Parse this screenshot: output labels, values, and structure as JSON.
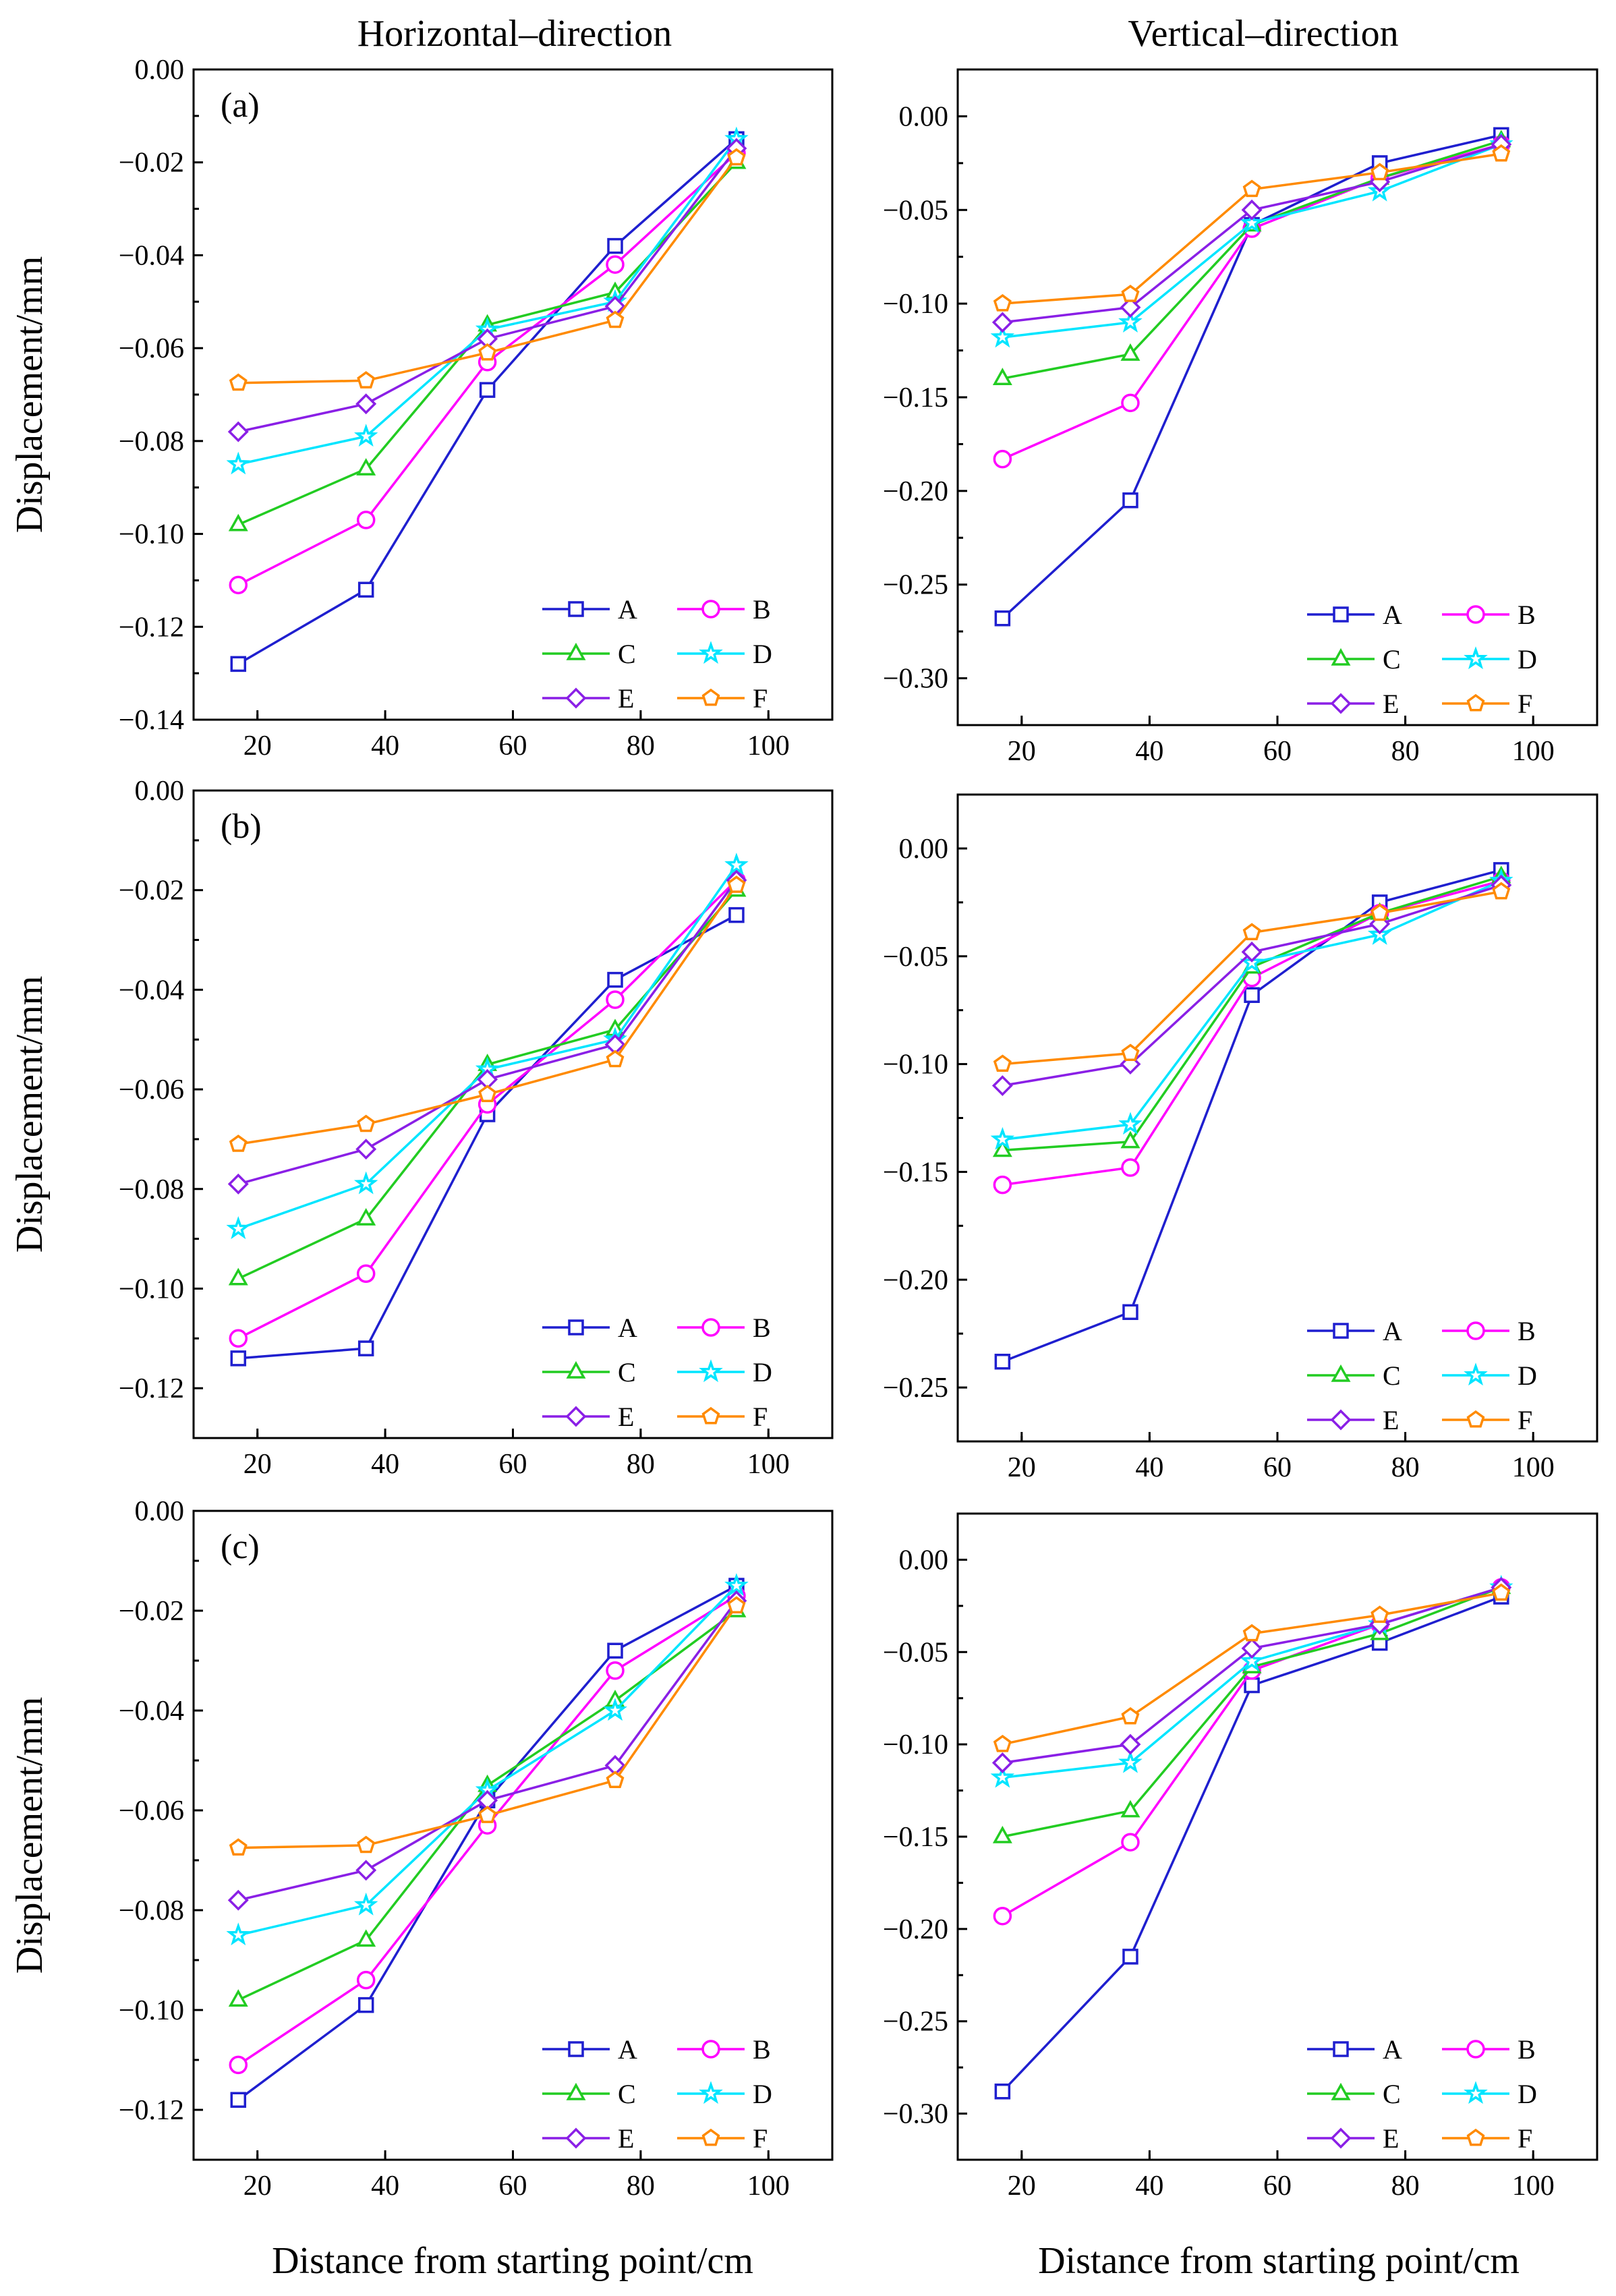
{
  "figure": {
    "col_titles": [
      "Horizontal–direction",
      "Vertical–direction"
    ],
    "xlabel": "Distance from starting point/cm",
    "ylabel": "Displacement/mm"
  },
  "series_style": [
    {
      "name": "A",
      "color": "#1f1fcf",
      "marker": "square"
    },
    {
      "name": "B",
      "color": "#ff00ff",
      "marker": "circle"
    },
    {
      "name": "C",
      "color": "#22cc22",
      "marker": "triangle"
    },
    {
      "name": "D",
      "color": "#00e5ff",
      "marker": "star"
    },
    {
      "name": "E",
      "color": "#8a1fe6",
      "marker": "diamond"
    },
    {
      "name": "F",
      "color": "#ff8a00",
      "marker": "pentagon"
    }
  ],
  "chart_data": [
    {
      "type": "line",
      "panel": "(a)",
      "column": "Horizontal–direction",
      "xlim": [
        10,
        110
      ],
      "xticks": [
        20,
        40,
        60,
        80,
        100
      ],
      "ylim": [
        -0.14,
        0.0
      ],
      "yticks": [
        -0.14,
        -0.12,
        -0.1,
        -0.08,
        -0.06,
        -0.04,
        -0.02,
        0.0
      ],
      "ytick_labels": [
        "−0.14",
        "−0.12",
        "−0.10",
        "−0.08",
        "−0.06",
        "−0.04",
        "−0.02",
        "0.00"
      ],
      "x": [
        17,
        37,
        56,
        76,
        95
      ],
      "legend": "lower-right",
      "series": [
        {
          "name": "A",
          "values": [
            -0.128,
            -0.112,
            -0.069,
            -0.038,
            -0.015
          ]
        },
        {
          "name": "B",
          "values": [
            -0.111,
            -0.097,
            -0.063,
            -0.042,
            -0.018
          ]
        },
        {
          "name": "C",
          "values": [
            -0.098,
            -0.086,
            -0.055,
            -0.048,
            -0.02
          ]
        },
        {
          "name": "D",
          "values": [
            -0.085,
            -0.079,
            -0.056,
            -0.05,
            -0.015
          ]
        },
        {
          "name": "E",
          "values": [
            -0.078,
            -0.072,
            -0.058,
            -0.051,
            -0.017
          ]
        },
        {
          "name": "F",
          "values": [
            -0.0675,
            -0.067,
            -0.061,
            -0.054,
            -0.019
          ]
        }
      ]
    },
    {
      "type": "line",
      "column": "Vertical–direction",
      "xlim": [
        10,
        110
      ],
      "xticks": [
        20,
        40,
        60,
        80,
        100
      ],
      "ylim": [
        -0.325,
        0.025
      ],
      "yticks": [
        -0.3,
        -0.25,
        -0.2,
        -0.15,
        -0.1,
        -0.05,
        0.0
      ],
      "ytick_labels": [
        "−0.30",
        "−0.25",
        "−0.20",
        "−0.15",
        "−0.10",
        "−0.05",
        "0.00"
      ],
      "x": [
        17,
        37,
        56,
        76,
        95
      ],
      "legend": "lower-right",
      "series": [
        {
          "name": "A",
          "values": [
            -0.268,
            -0.205,
            -0.058,
            -0.025,
            -0.01
          ]
        },
        {
          "name": "B",
          "values": [
            -0.183,
            -0.153,
            -0.06,
            -0.033,
            -0.015
          ]
        },
        {
          "name": "C",
          "values": [
            -0.14,
            -0.127,
            -0.058,
            -0.033,
            -0.013
          ]
        },
        {
          "name": "D",
          "values": [
            -0.118,
            -0.11,
            -0.057,
            -0.04,
            -0.015
          ]
        },
        {
          "name": "E",
          "values": [
            -0.11,
            -0.102,
            -0.05,
            -0.035,
            -0.015
          ]
        },
        {
          "name": "F",
          "values": [
            -0.1,
            -0.095,
            -0.039,
            -0.03,
            -0.02
          ]
        }
      ]
    },
    {
      "type": "line",
      "panel": "(b)",
      "column": "Horizontal–direction",
      "xlim": [
        10,
        110
      ],
      "xticks": [
        20,
        40,
        60,
        80,
        100
      ],
      "ylim": [
        -0.13,
        0.0
      ],
      "yticks": [
        -0.12,
        -0.1,
        -0.08,
        -0.06,
        -0.04,
        -0.02,
        0.0
      ],
      "ytick_labels": [
        "−0.12",
        "−0.10",
        "−0.08",
        "−0.06",
        "−0.04",
        "−0.02",
        "0.00"
      ],
      "x": [
        17,
        37,
        56,
        76,
        95
      ],
      "legend": "lower-right",
      "series": [
        {
          "name": "A",
          "values": [
            -0.114,
            -0.112,
            -0.065,
            -0.038,
            -0.025
          ]
        },
        {
          "name": "B",
          "values": [
            -0.11,
            -0.097,
            -0.063,
            -0.042,
            -0.018
          ]
        },
        {
          "name": "C",
          "values": [
            -0.098,
            -0.086,
            -0.055,
            -0.048,
            -0.02
          ]
        },
        {
          "name": "D",
          "values": [
            -0.088,
            -0.079,
            -0.056,
            -0.05,
            -0.015
          ]
        },
        {
          "name": "E",
          "values": [
            -0.079,
            -0.072,
            -0.058,
            -0.051,
            -0.018
          ]
        },
        {
          "name": "F",
          "values": [
            -0.071,
            -0.067,
            -0.061,
            -0.054,
            -0.019
          ]
        }
      ]
    },
    {
      "type": "line",
      "column": "Vertical–direction",
      "xlim": [
        10,
        110
      ],
      "xticks": [
        20,
        40,
        60,
        80,
        100
      ],
      "ylim": [
        -0.275,
        0.025
      ],
      "yticks": [
        -0.25,
        -0.2,
        -0.15,
        -0.1,
        -0.05,
        0.0
      ],
      "ytick_labels": [
        "−0.25",
        "−0.20",
        "−0.15",
        "−0.10",
        "−0.05",
        "0.00"
      ],
      "x": [
        17,
        37,
        56,
        76,
        95
      ],
      "legend": "lower-right",
      "series": [
        {
          "name": "A",
          "values": [
            -0.238,
            -0.215,
            -0.068,
            -0.025,
            -0.01
          ]
        },
        {
          "name": "B",
          "values": [
            -0.156,
            -0.148,
            -0.06,
            -0.03,
            -0.015
          ]
        },
        {
          "name": "C",
          "values": [
            -0.14,
            -0.136,
            -0.055,
            -0.03,
            -0.013
          ]
        },
        {
          "name": "D",
          "values": [
            -0.135,
            -0.128,
            -0.053,
            -0.04,
            -0.015
          ]
        },
        {
          "name": "E",
          "values": [
            -0.11,
            -0.1,
            -0.048,
            -0.035,
            -0.017
          ]
        },
        {
          "name": "F",
          "values": [
            -0.1,
            -0.095,
            -0.039,
            -0.03,
            -0.02
          ]
        }
      ]
    },
    {
      "type": "line",
      "panel": "(c)",
      "column": "Horizontal–direction",
      "xlim": [
        10,
        110
      ],
      "xticks": [
        20,
        40,
        60,
        80,
        100
      ],
      "ylim": [
        -0.13,
        0.0
      ],
      "yticks": [
        -0.12,
        -0.1,
        -0.08,
        -0.06,
        -0.04,
        -0.02,
        0.0
      ],
      "ytick_labels": [
        "−0.12",
        "−0.10",
        "−0.08",
        "−0.06",
        "−0.04",
        "−0.02",
        "0.00"
      ],
      "x": [
        17,
        37,
        56,
        76,
        95
      ],
      "legend": "lower-right",
      "series": [
        {
          "name": "A",
          "values": [
            -0.118,
            -0.099,
            -0.058,
            -0.028,
            -0.015
          ]
        },
        {
          "name": "B",
          "values": [
            -0.111,
            -0.094,
            -0.063,
            -0.032,
            -0.017
          ]
        },
        {
          "name": "C",
          "values": [
            -0.098,
            -0.086,
            -0.055,
            -0.038,
            -0.02
          ]
        },
        {
          "name": "D",
          "values": [
            -0.085,
            -0.079,
            -0.056,
            -0.04,
            -0.015
          ]
        },
        {
          "name": "E",
          "values": [
            -0.078,
            -0.072,
            -0.058,
            -0.051,
            -0.018
          ]
        },
        {
          "name": "F",
          "values": [
            -0.0675,
            -0.067,
            -0.061,
            -0.054,
            -0.019
          ]
        }
      ]
    },
    {
      "type": "line",
      "column": "Vertical–direction",
      "xlim": [
        10,
        110
      ],
      "xticks": [
        20,
        40,
        60,
        80,
        100
      ],
      "ylim": [
        -0.325,
        0.025
      ],
      "yticks": [
        -0.3,
        -0.25,
        -0.2,
        -0.15,
        -0.1,
        -0.05,
        0.0
      ],
      "ytick_labels": [
        "−0.30",
        "−0.25",
        "−0.20",
        "−0.15",
        "−0.10",
        "−0.05",
        "0.00"
      ],
      "x": [
        17,
        37,
        56,
        76,
        95
      ],
      "legend": "lower-right",
      "series": [
        {
          "name": "A",
          "values": [
            -0.288,
            -0.215,
            -0.068,
            -0.045,
            -0.02
          ]
        },
        {
          "name": "B",
          "values": [
            -0.193,
            -0.153,
            -0.06,
            -0.035,
            -0.015
          ]
        },
        {
          "name": "C",
          "values": [
            -0.15,
            -0.136,
            -0.058,
            -0.04,
            -0.015
          ]
        },
        {
          "name": "D",
          "values": [
            -0.118,
            -0.11,
            -0.055,
            -0.035,
            -0.015
          ]
        },
        {
          "name": "E",
          "values": [
            -0.11,
            -0.1,
            -0.048,
            -0.035,
            -0.015
          ]
        },
        {
          "name": "F",
          "values": [
            -0.1,
            -0.085,
            -0.04,
            -0.03,
            -0.018
          ]
        }
      ]
    }
  ]
}
